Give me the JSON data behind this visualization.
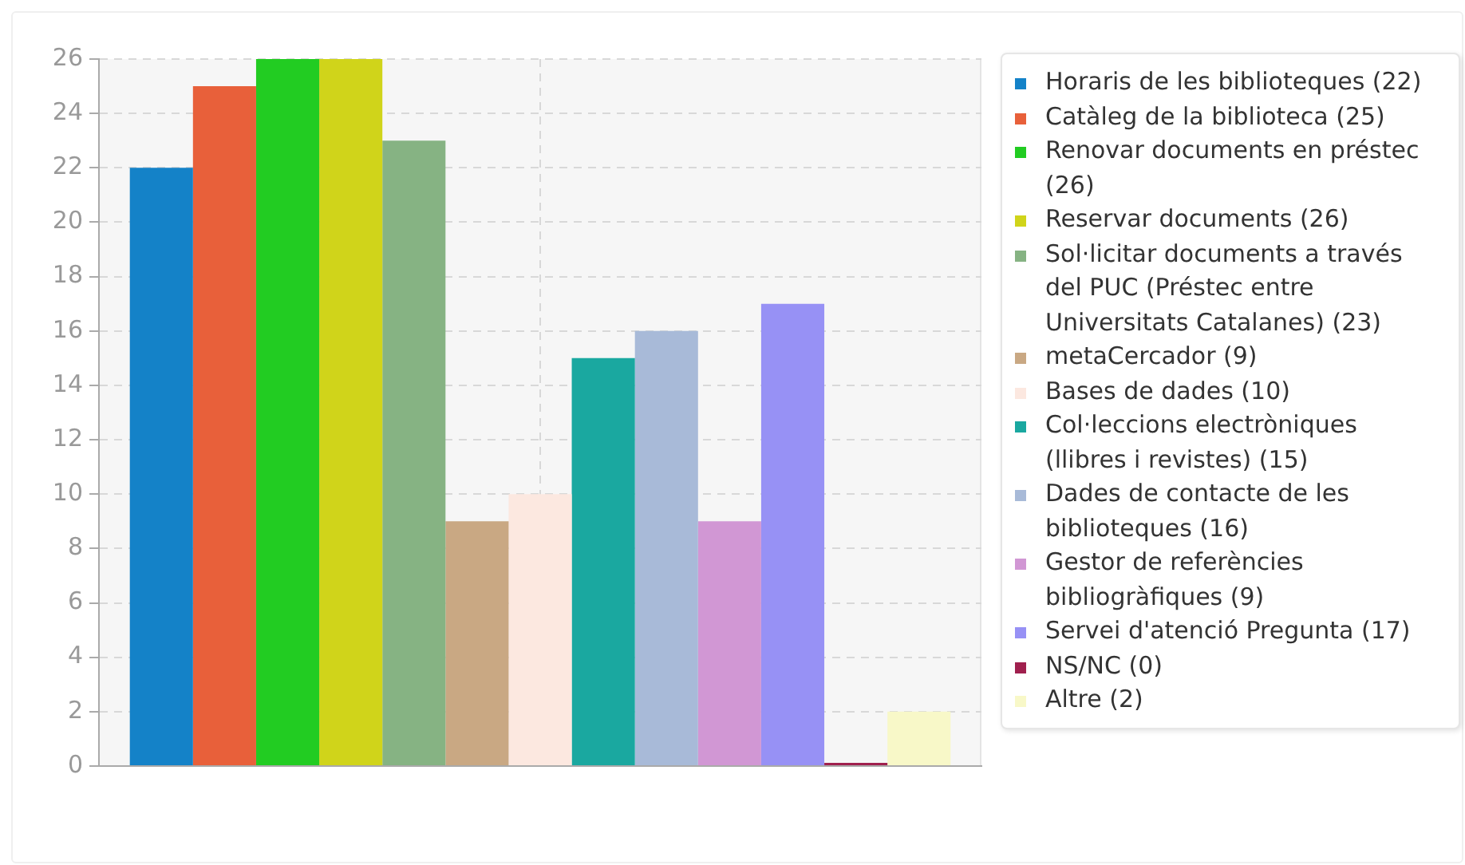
{
  "chart_data": {
    "type": "bar",
    "categories": [
      null
    ],
    "series": [
      {
        "name": "Horaris de les biblioteques (22)",
        "color": "#1482c8",
        "values": [
          22
        ]
      },
      {
        "name": "Catàleg de la biblioteca (25)",
        "color": "#e8603a",
        "values": [
          25
        ]
      },
      {
        "name": "Renovar documents en préstec (26)",
        "color": "#22cc22",
        "values": [
          26
        ]
      },
      {
        "name": "Reservar documents (26)",
        "color": "#d0d41a",
        "values": [
          26
        ]
      },
      {
        "name": "Sol·licitar documents a través del PUC (Préstec entre Universitats Catalanes) (23)",
        "color": "#86b383",
        "values": [
          23
        ]
      },
      {
        "name": "metaCercador (9)",
        "color": "#c9a883",
        "values": [
          9
        ]
      },
      {
        "name": "Bases de dades (10)",
        "color": "#fce8e0",
        "values": [
          10
        ]
      },
      {
        "name": "Col·leccions electròniques (llibres i revistes) (15)",
        "color": "#1aa8a0",
        "values": [
          15
        ]
      },
      {
        "name": "Dades de contacte de les biblioteques (16)",
        "color": "#a8bad8",
        "values": [
          16
        ]
      },
      {
        "name": "Gestor de referències bibliogràfiques (9)",
        "color": "#d197d4",
        "values": [
          9
        ]
      },
      {
        "name": "Servei d'atenció Pregunta (17)",
        "color": "#9791f5",
        "values": [
          17
        ]
      },
      {
        "name": "NS/NC (0)",
        "color": "#a0204e",
        "values": [
          0
        ]
      },
      {
        "name": "Altre (2)",
        "color": "#f8f8c8",
        "values": [
          2
        ]
      }
    ],
    "ylim": [
      0,
      26
    ],
    "yticks": [
      0,
      2,
      4,
      6,
      8,
      10,
      12,
      14,
      16,
      18,
      20,
      22,
      24,
      26
    ],
    "grid": true,
    "legend": "right",
    "tick_labels": "y"
  }
}
